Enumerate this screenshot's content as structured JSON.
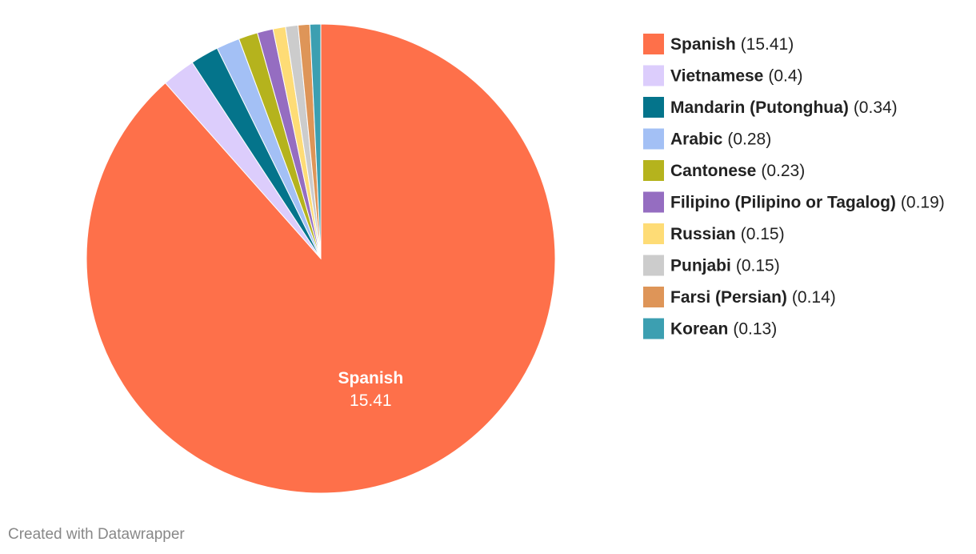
{
  "chart_data": {
    "type": "pie",
    "categories": [
      "Spanish",
      "Vietnamese",
      "Mandarin (Putonghua)",
      "Arabic",
      "Cantonese",
      "Filipino (Pilipino or Tagalog)",
      "Russian",
      "Punjabi",
      "Farsi (Persian)",
      "Korean"
    ],
    "values": [
      15.41,
      0.4,
      0.34,
      0.28,
      0.23,
      0.19,
      0.15,
      0.15,
      0.14,
      0.13
    ],
    "value_labels": [
      "(15.41)",
      "(0.4)",
      "(0.34)",
      "(0.28)",
      "(0.23)",
      "(0.19)",
      "(0.15)",
      "(0.15)",
      "(0.14)",
      "(0.13)"
    ],
    "colors": [
      "#fe704a",
      "#dccdfc",
      "#04748b",
      "#a3c0f5",
      "#b5b31d",
      "#956dc1",
      "#fedc76",
      "#cccccc",
      "#de9558",
      "#3c9fb1"
    ],
    "legend": "right",
    "credit": "Created with Datawrapper"
  }
}
